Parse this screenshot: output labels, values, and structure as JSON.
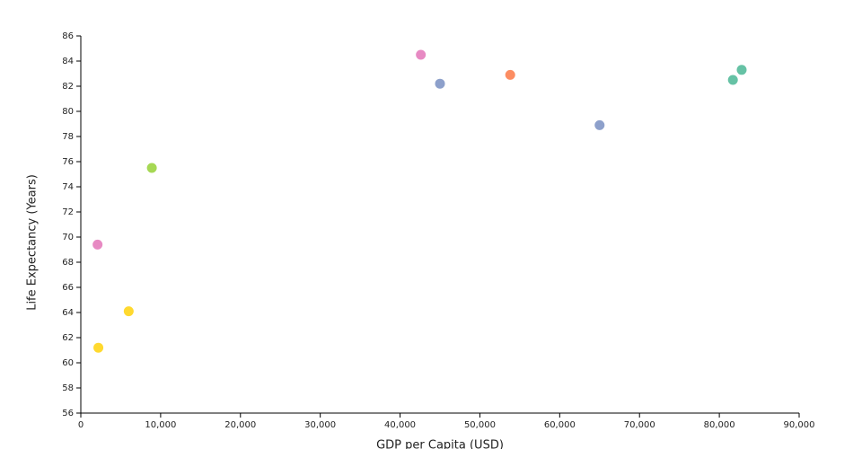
{
  "chart_data": {
    "type": "scatter",
    "x_label": "GDP per Capita (USD)",
    "y_label": "Life Expectancy (Years)",
    "x": [
      42600,
      45000,
      53800,
      81700,
      82800,
      65000,
      8900,
      2100,
      6000,
      2200
    ],
    "values": [
      84.5,
      82.2,
      82.9,
      82.5,
      83.3,
      78.9,
      75.5,
      69.4,
      64.1,
      61.2
    ],
    "colors": [
      "#e78ac3",
      "#8da0cb",
      "#fc8d62",
      "#66c2a5",
      "#66c2a5",
      "#8da0cb",
      "#a6d854",
      "#e78ac3",
      "#ffd92f",
      "#ffd92f"
    ],
    "xlim": [
      0,
      90000
    ],
    "xticks": [
      0,
      {
        "value": 10000,
        "label": "10,000"
      },
      {
        "value": 20000,
        "label": "20,000"
      },
      {
        "value": 30000,
        "label": "30,000"
      },
      {
        "value": 40000,
        "label": "40,000"
      },
      {
        "value": 50000,
        "label": "50,000"
      },
      {
        "value": 60000,
        "label": "60,000"
      },
      {
        "value": 70000,
        "label": "70,000"
      },
      {
        "value": 80000,
        "label": "80,000"
      },
      {
        "value": 90000,
        "label": "90,000"
      }
    ],
    "ylim": [
      56,
      86
    ],
    "yticks": [
      56,
      58,
      60,
      62,
      64,
      66,
      68,
      70,
      72,
      74,
      76,
      78,
      80,
      82,
      84,
      86
    ]
  }
}
